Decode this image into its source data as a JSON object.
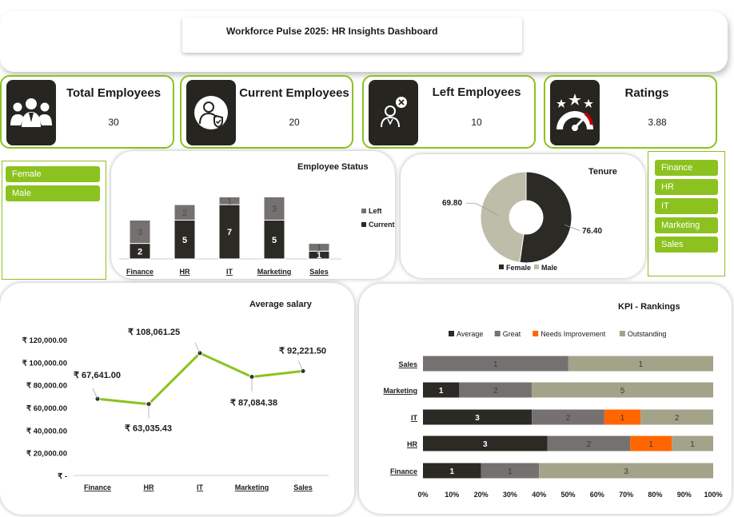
{
  "header": {
    "title": "Workforce Pulse 2025: HR Insights Dashboard"
  },
  "kpis": [
    {
      "label": "Total Employees",
      "value": "30",
      "icon": "people-group-icon"
    },
    {
      "label": "Current Employees",
      "value": "20",
      "icon": "employee-shield-icon"
    },
    {
      "label": "Left Employees",
      "value": "10",
      "icon": "employee-left-icon"
    },
    {
      "label": "Ratings",
      "value": "3.88",
      "icon": "stars-gauge-icon"
    }
  ],
  "gender_slicer": {
    "items": [
      "Female",
      "Male"
    ]
  },
  "department_slicer": {
    "items": [
      "Finance",
      "HR",
      "IT",
      "Marketing",
      "Sales"
    ]
  },
  "colors": {
    "accent": "#8cc21f",
    "dark": "#2b2a24",
    "grey": "#767171",
    "light_grey": "#bdbdaa",
    "olive": "#a3a38a",
    "orange": "#ff6600"
  },
  "employee_status": {
    "title": "Employee Status",
    "chart_data": {
      "type": "bar",
      "stacked": true,
      "categories": [
        "Finance",
        "HR",
        "IT",
        "Marketing",
        "Sales"
      ],
      "series": [
        {
          "name": "Current",
          "values": [
            2,
            5,
            7,
            5,
            1
          ],
          "color": "#2b2a24"
        },
        {
          "name": "Left",
          "values": [
            3,
            2,
            1,
            3,
            1
          ],
          "color": "#767171"
        }
      ],
      "legend": "right"
    }
  },
  "tenure": {
    "title": "Tenure",
    "chart_data": {
      "type": "pie",
      "donut": true,
      "labels": [
        "Female",
        "Male"
      ],
      "values": [
        76.4,
        69.8
      ],
      "value_labels": [
        "76.40",
        "69.80"
      ],
      "colors": [
        "#2b2a24",
        "#bdbdaa"
      ],
      "legend": "bottom"
    }
  },
  "salary": {
    "title": "Average salary",
    "chart_data": {
      "type": "line",
      "categories": [
        "Finance",
        "HR",
        "IT",
        "Marketing",
        "Sales"
      ],
      "values": [
        67641.0,
        63035.43,
        108061.25,
        87084.38,
        92221.5
      ],
      "value_labels": [
        "₹ 67,641.00",
        "₹ 63,035.43",
        "₹ 108,061.25",
        "₹ 87,084.38",
        "₹ 92,221.50"
      ],
      "y_ticks": [
        "₹ -",
        "₹ 20,000.00",
        "₹ 40,000.00",
        "₹ 60,000.00",
        "₹ 80,000.00",
        "₹ 100,000.00",
        "₹ 120,000.00"
      ],
      "ylim": [
        0,
        120000
      ],
      "color": "#8cc21f"
    }
  },
  "kpi_rankings": {
    "title": "KPI - Rankings",
    "chart_data": {
      "type": "bar",
      "orientation": "horizontal",
      "stacked_percent": true,
      "categories": [
        "Sales",
        "Marketing",
        "IT",
        "HR",
        "Finance"
      ],
      "series": [
        {
          "name": "Average",
          "values": [
            0,
            1,
            3,
            3,
            1
          ],
          "color": "#2b2a24"
        },
        {
          "name": "Great",
          "values": [
            1,
            2,
            2,
            2,
            1
          ],
          "color": "#767171"
        },
        {
          "name": "Needs Improvement",
          "values": [
            0,
            0,
            1,
            1,
            0
          ],
          "color": "#ff6600"
        },
        {
          "name": "Outstanding",
          "values": [
            1,
            5,
            2,
            1,
            3
          ],
          "color": "#a3a38a"
        }
      ],
      "x_ticks": [
        "0%",
        "10%",
        "20%",
        "30%",
        "40%",
        "50%",
        "60%",
        "70%",
        "80%",
        "90%",
        "100%"
      ],
      "legend": "top"
    }
  }
}
